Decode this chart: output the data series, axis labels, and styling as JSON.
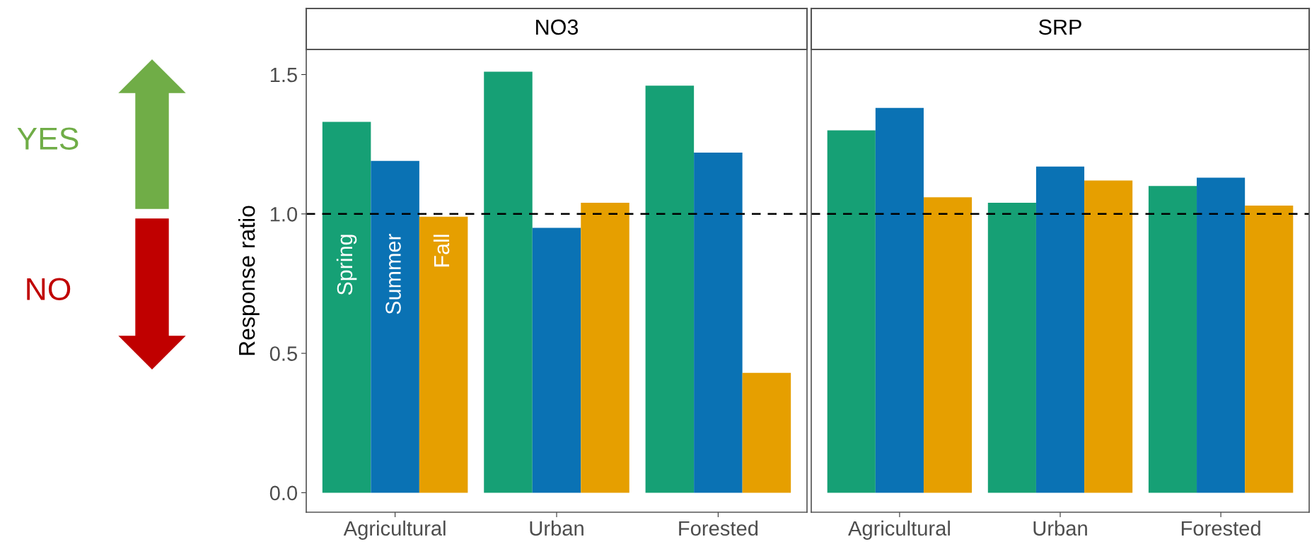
{
  "chart_data": [
    {
      "type": "bar",
      "title": "NO3",
      "ylabel": "Response ratio",
      "categories": [
        "Agricultural",
        "Urban",
        "Forested"
      ],
      "series": [
        {
          "name": "Spring",
          "color": "#16a075",
          "values": [
            1.33,
            1.51,
            1.46
          ]
        },
        {
          "name": "Summer",
          "color": "#0a72b4",
          "values": [
            1.19,
            0.95,
            1.22
          ]
        },
        {
          "name": "Fall",
          "color": "#e69f00",
          "values": [
            0.99,
            1.04,
            0.43
          ]
        }
      ],
      "ylim": [
        -0.07,
        1.59
      ],
      "yticks": [
        {
          "value": 0,
          "label": "0.0"
        },
        {
          "value": 0.5,
          "label": "0.5"
        },
        {
          "value": 1,
          "label": "1.0"
        },
        {
          "value": 1.5,
          "label": "1.5"
        }
      ],
      "ref_lines": [
        {
          "axis": "y",
          "value": 1,
          "color": "#000000",
          "line_style": "dashed"
        }
      ],
      "annotations": [
        "YES",
        "NO"
      ],
      "grid": false,
      "legend": false
    },
    {
      "type": "bar",
      "title": "SRP",
      "categories": [
        "Agricultural",
        "Urban",
        "Forested"
      ],
      "series": [
        {
          "color": "#16a075",
          "values": [
            1.3,
            1.04,
            1.1
          ]
        },
        {
          "color": "#0a72b4",
          "values": [
            1.38,
            1.17,
            1.13
          ]
        },
        {
          "color": "#e69f00",
          "values": [
            1.06,
            1.12,
            1.03
          ]
        }
      ],
      "ylim": [
        -0.07,
        1.59
      ],
      "tick_labels": "x",
      "ref_lines": [
        {
          "axis": "y",
          "value": 1,
          "color": "#000000",
          "line_style": "dashed"
        }
      ],
      "grid": false,
      "legend": false
    }
  ]
}
